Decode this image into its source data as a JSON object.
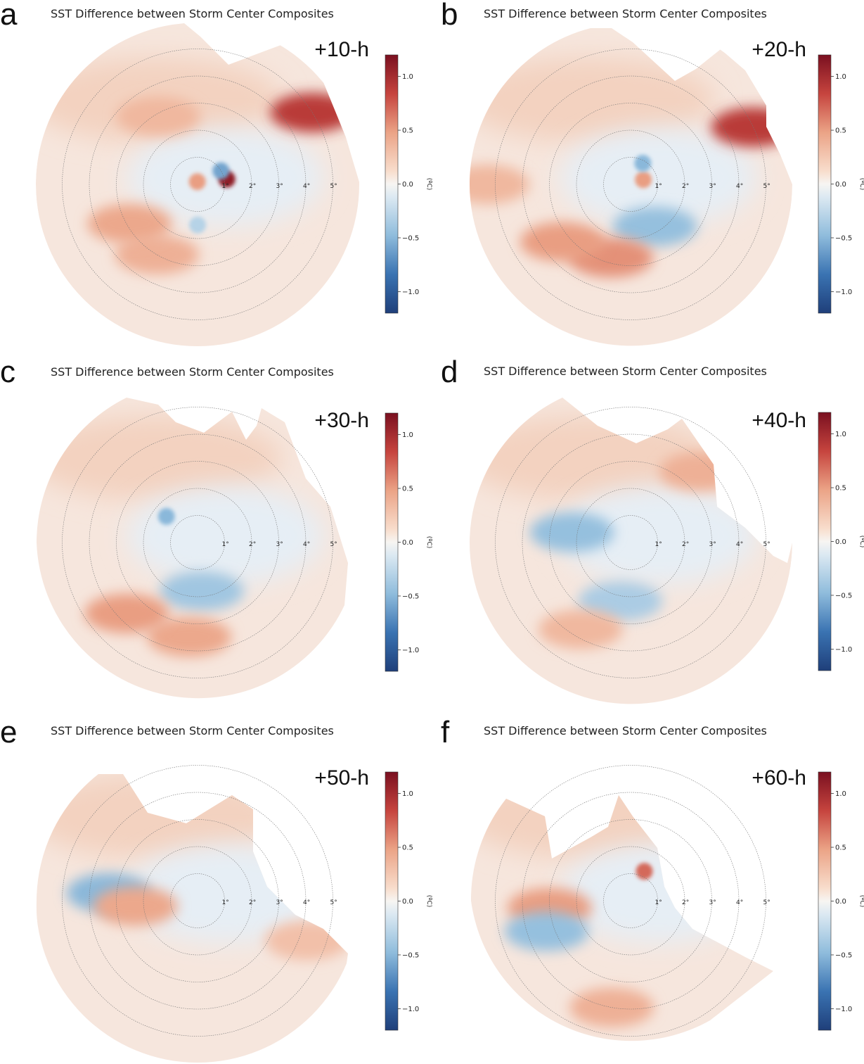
{
  "figure": {
    "colorbar": {
      "min": -1.2,
      "max": 1.2,
      "ticks": [
        "1.0",
        "0.5",
        "0.0",
        "−0.5",
        "−1.0"
      ],
      "tick_values": [
        1.0,
        0.5,
        0.0,
        -0.5,
        -1.0
      ],
      "unit": "(ºC)",
      "colormap": "RdBu_r",
      "colors": {
        "low": "#1f3f7a",
        "mid": "#f7f5f2",
        "high": "#7a1020"
      }
    },
    "ring_labels": [
      "1°",
      "2°",
      "3°",
      "4°",
      "5°"
    ],
    "panels": [
      {
        "letter": "a",
        "title": "SST Difference between Storm Center Composites",
        "time": "+10-h"
      },
      {
        "letter": "b",
        "title": "SST Difference between Storm Center Composites",
        "time": "+20-h"
      },
      {
        "letter": "c",
        "title": "SST Difference between Storm Center Composites",
        "time": "+30-h"
      },
      {
        "letter": "d",
        "title": "SST Difference between Storm Center Composites",
        "time": "+40-h"
      },
      {
        "letter": "e",
        "title": "SST Difference between Storm Center Composites",
        "time": "+50-h"
      },
      {
        "letter": "f",
        "title": "SST Difference between Storm Center Composites",
        "time": "+60-h"
      }
    ]
  },
  "chart_data": [
    {
      "type": "heatmap",
      "projection": "polar",
      "panel": "a",
      "title": "SST Difference between Storm Center Composites",
      "annotation": "+10-h",
      "radial_range_deg": [
        0,
        6
      ],
      "rings_deg": [
        1,
        2,
        3,
        4,
        5
      ],
      "colorbar_range": [
        -1.2,
        1.2
      ],
      "unit": "ºC",
      "features": [
        {
          "kind": "warm",
          "angle_deg": 95,
          "radius_deg": 0.1,
          "value": 0.5
        },
        {
          "kind": "warm",
          "angle_deg": 10,
          "radius_deg": 1.1,
          "value": 1.1
        },
        {
          "kind": "cold",
          "angle_deg": 30,
          "radius_deg": 1.0,
          "value": -0.6
        },
        {
          "kind": "cold",
          "angle_deg": 270,
          "radius_deg": 1.5,
          "value": -0.3
        },
        {
          "kind": "warm",
          "angle_deg": 240,
          "radius_deg": 3.0,
          "value": 0.4
        },
        {
          "kind": "warm",
          "angle_deg": 210,
          "radius_deg": 2.9,
          "value": 0.45
        },
        {
          "kind": "warm",
          "angle_deg": 120,
          "radius_deg": 2.9,
          "value": 0.35
        },
        {
          "kind": "warm",
          "angle_deg": 32,
          "radius_deg": 5.0,
          "value": 0.9
        }
      ]
    },
    {
      "type": "heatmap",
      "projection": "polar",
      "panel": "b",
      "title": "SST Difference between Storm Center Composites",
      "annotation": "+20-h",
      "radial_range_deg": [
        0,
        6
      ],
      "rings_deg": [
        1,
        2,
        3,
        4,
        5
      ],
      "colorbar_range": [
        -1.2,
        1.2
      ],
      "unit": "ºC",
      "features": [
        {
          "kind": "warm",
          "angle_deg": 20,
          "radius_deg": 0.5,
          "value": 0.5
        },
        {
          "kind": "cold",
          "angle_deg": 60,
          "radius_deg": 0.9,
          "value": -0.5
        },
        {
          "kind": "cold",
          "angle_deg": 300,
          "radius_deg": 1.8,
          "value": -0.45
        },
        {
          "kind": "warm",
          "angle_deg": 255,
          "radius_deg": 2.8,
          "value": 0.55
        },
        {
          "kind": "warm",
          "angle_deg": 220,
          "radius_deg": 3.3,
          "value": 0.5
        },
        {
          "kind": "warm",
          "angle_deg": 25,
          "radius_deg": 5.0,
          "value": 0.9
        },
        {
          "kind": "warm",
          "angle_deg": 180,
          "radius_deg": 5.3,
          "value": 0.35
        }
      ]
    },
    {
      "type": "heatmap",
      "projection": "polar",
      "panel": "c",
      "title": "SST Difference between Storm Center Composites",
      "annotation": "+30-h",
      "radial_range_deg": [
        0,
        6
      ],
      "rings_deg": [
        1,
        2,
        3,
        4,
        5
      ],
      "colorbar_range": [
        -1.2,
        1.2
      ],
      "unit": "ºC",
      "features": [
        {
          "kind": "cold",
          "angle_deg": 140,
          "radius_deg": 1.5,
          "value": -0.5
        },
        {
          "kind": "cold",
          "angle_deg": 275,
          "radius_deg": 1.8,
          "value": -0.4
        },
        {
          "kind": "warm",
          "angle_deg": 265,
          "radius_deg": 3.5,
          "value": 0.45
        },
        {
          "kind": "warm",
          "angle_deg": 225,
          "radius_deg": 3.7,
          "value": 0.5
        }
      ]
    },
    {
      "type": "heatmap",
      "projection": "polar",
      "panel": "d",
      "title": "SST Difference between Storm Center Composites",
      "annotation": "+40-h",
      "radial_range_deg": [
        0,
        6
      ],
      "rings_deg": [
        1,
        2,
        3,
        4,
        5
      ],
      "colorbar_range": [
        -1.2,
        1.2
      ],
      "unit": "ºC",
      "features": [
        {
          "kind": "cold",
          "angle_deg": 170,
          "radius_deg": 2.2,
          "value": -0.45
        },
        {
          "kind": "cold",
          "angle_deg": 260,
          "radius_deg": 2.2,
          "value": -0.35
        },
        {
          "kind": "warm",
          "angle_deg": 240,
          "radius_deg": 3.7,
          "value": 0.35
        },
        {
          "kind": "warm",
          "angle_deg": 45,
          "radius_deg": 3.7,
          "value": 0.4
        }
      ]
    },
    {
      "type": "heatmap",
      "projection": "polar",
      "panel": "e",
      "title": "SST Difference between Storm Center Composites",
      "annotation": "+50-h",
      "radial_range_deg": [
        0,
        6
      ],
      "rings_deg": [
        1,
        2,
        3,
        4,
        5
      ],
      "colorbar_range": [
        -1.2,
        1.2
      ],
      "unit": "ºC",
      "features": [
        {
          "kind": "cold",
          "angle_deg": 175,
          "radius_deg": 3.3,
          "value": -0.5
        },
        {
          "kind": "warm",
          "angle_deg": 185,
          "radius_deg": 2.3,
          "value": 0.45
        },
        {
          "kind": "warm",
          "angle_deg": 340,
          "radius_deg": 4.3,
          "value": 0.3
        }
      ]
    },
    {
      "type": "heatmap",
      "projection": "polar",
      "panel": "f",
      "title": "SST Difference between Storm Center Composites",
      "annotation": "+60-h",
      "radial_range_deg": [
        0,
        6
      ],
      "rings_deg": [
        1,
        2,
        3,
        4,
        5
      ],
      "colorbar_range": [
        -1.2,
        1.2
      ],
      "unit": "ºC",
      "features": [
        {
          "kind": "warm",
          "angle_deg": 65,
          "radius_deg": 1.2,
          "value": 0.7
        },
        {
          "kind": "warm",
          "angle_deg": 185,
          "radius_deg": 3.0,
          "value": 0.5
        },
        {
          "kind": "cold",
          "angle_deg": 200,
          "radius_deg": 3.3,
          "value": -0.45
        },
        {
          "kind": "warm",
          "angle_deg": 260,
          "radius_deg": 4.0,
          "value": 0.4
        }
      ]
    }
  ]
}
